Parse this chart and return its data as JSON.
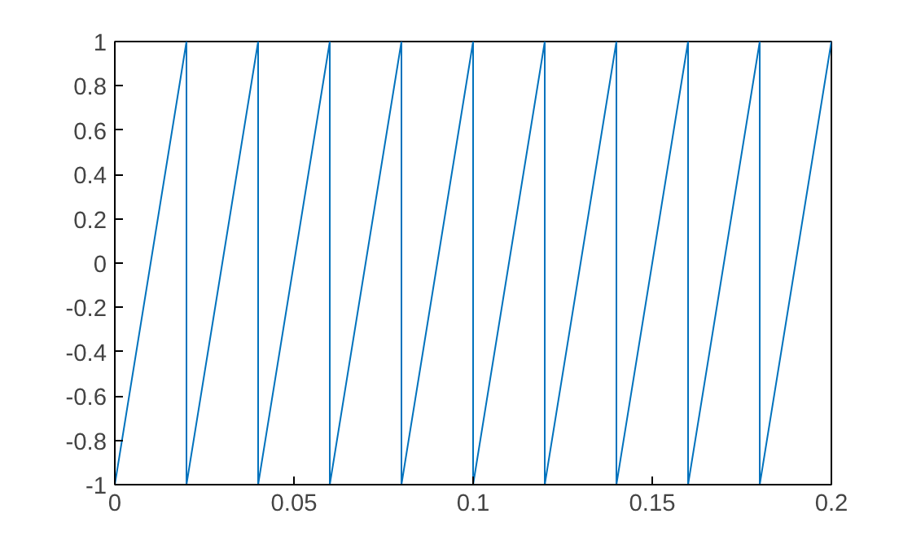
{
  "chart_data": {
    "type": "line",
    "x": [
      0,
      0.02,
      0.02,
      0.04,
      0.04,
      0.06,
      0.06,
      0.08,
      0.08,
      0.1,
      0.1,
      0.12,
      0.12,
      0.14,
      0.14,
      0.16,
      0.16,
      0.18,
      0.18,
      0.2
    ],
    "series": [
      {
        "color": "#0072bd",
        "values": [
          -1,
          1,
          -1,
          1,
          -1,
          1,
          -1,
          1,
          -1,
          1,
          -1,
          1,
          -1,
          1,
          -1,
          1,
          -1,
          1,
          -1,
          1
        ]
      }
    ],
    "xlim": [
      0,
      0.2
    ],
    "xticks": [
      0,
      0.05,
      0.1,
      0.15,
      0.2
    ],
    "ylim": [
      -1,
      1
    ],
    "yticks": [
      -1,
      -0.8,
      -0.6,
      -0.4,
      -0.2,
      0,
      0.2,
      0.4,
      0.6,
      0.8,
      1
    ],
    "grid": false
  }
}
